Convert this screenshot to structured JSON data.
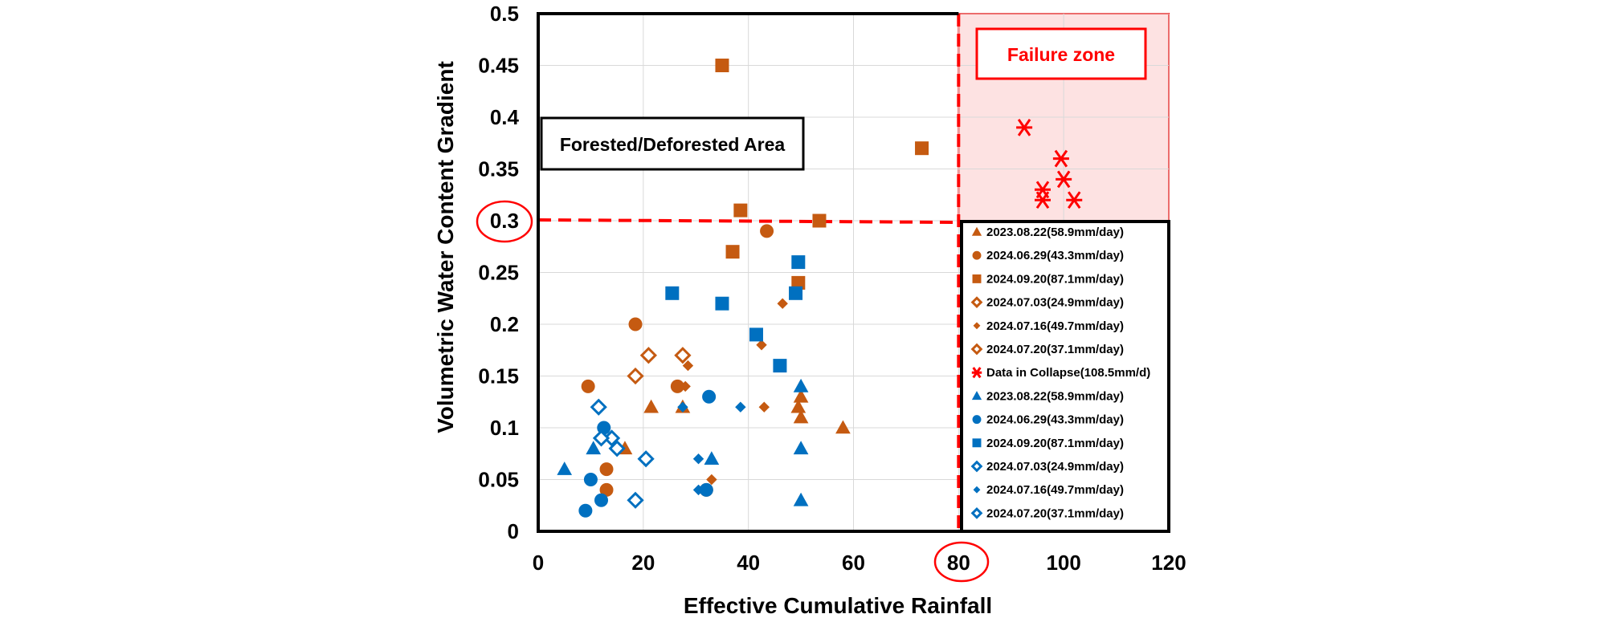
{
  "chart_data": {
    "type": "scatter",
    "xlabel": "Effective Cumulative Rainfall",
    "ylabel": "Volumetric Water Content Gradient",
    "xlim": [
      0,
      120
    ],
    "ylim": [
      0,
      0.5
    ],
    "xticks": [
      "0",
      "20",
      "40",
      "60",
      "80",
      "100",
      "120"
    ],
    "yticks": [
      "0",
      "0.05",
      "0.1",
      "0.15",
      "0.2",
      "0.25",
      "0.3",
      "0.35",
      "0.4",
      "0.45",
      "0.5"
    ],
    "grid": "on",
    "legend_placement": "right, below threshold line",
    "threshold": {
      "x": 80,
      "y": 0.3
    },
    "annotations": {
      "region_label": "Forested/Deforested Area",
      "failure_label": "Failure zone",
      "circled_x_tick": "80",
      "circled_y_tick": "0.3"
    },
    "colors": {
      "orange": "#C55A11",
      "blue": "#0070C0",
      "red": "#FF0000",
      "failure_fill": "#FDE2E2"
    },
    "series": [
      {
        "name": "2023.08.22(58.9mm/day)",
        "marker": "triangle",
        "color": "#C55A11",
        "filled": true,
        "points": [
          [
            16.5,
            0.08
          ],
          [
            21.5,
            0.12
          ],
          [
            27.5,
            0.12
          ],
          [
            49.5,
            0.12
          ],
          [
            50,
            0.13
          ],
          [
            50,
            0.11
          ],
          [
            58,
            0.1
          ]
        ]
      },
      {
        "name": "2024.06.29(43.3mm/day)",
        "marker": "circle",
        "color": "#C55A11",
        "filled": true,
        "points": [
          [
            9.5,
            0.14
          ],
          [
            13,
            0.06
          ],
          [
            13,
            0.04
          ],
          [
            18.5,
            0.2
          ],
          [
            26.5,
            0.14
          ],
          [
            32,
            0.04
          ],
          [
            43.5,
            0.29
          ]
        ]
      },
      {
        "name": "2024.09.20(87.1mm/day)",
        "marker": "square",
        "color": "#C55A11",
        "filled": true,
        "points": [
          [
            35,
            0.45
          ],
          [
            37,
            0.27
          ],
          [
            38.5,
            0.31
          ],
          [
            49.5,
            0.24
          ],
          [
            53.5,
            0.3
          ],
          [
            73,
            0.37
          ]
        ]
      },
      {
        "name": "2024.07.03(24.9mm/day)",
        "marker": "diamond",
        "color": "#C55A11",
        "filled": false,
        "points": [
          [
            18.5,
            0.15
          ],
          [
            21,
            0.17
          ]
        ]
      },
      {
        "name": "2024.07.16(49.7mm/day)",
        "marker": "diamond-small",
        "color": "#C55A11",
        "filled": true,
        "points": [
          [
            28,
            0.14
          ],
          [
            28.5,
            0.16
          ],
          [
            33,
            0.05
          ],
          [
            42.5,
            0.18
          ],
          [
            43,
            0.12
          ],
          [
            46.5,
            0.22
          ]
        ]
      },
      {
        "name": "2024.07.20(37.1mm/day)",
        "marker": "diamond",
        "color": "#C55A11",
        "filled": false,
        "points": [
          [
            27.5,
            0.17
          ]
        ]
      },
      {
        "name": "Data in Collapse(108.5mm/d)",
        "marker": "star",
        "color": "#FF0000",
        "filled": true,
        "points": [
          [
            92.5,
            0.39
          ],
          [
            99.5,
            0.36
          ],
          [
            100,
            0.34
          ],
          [
            96,
            0.33
          ],
          [
            96,
            0.32
          ],
          [
            102,
            0.32
          ]
        ]
      },
      {
        "name": "2023.08.22(58.9mm/day)",
        "marker": "triangle",
        "color": "#0070C0",
        "filled": true,
        "points": [
          [
            5,
            0.06
          ],
          [
            10.5,
            0.08
          ],
          [
            33,
            0.07
          ],
          [
            50,
            0.14
          ],
          [
            50,
            0.08
          ],
          [
            50,
            0.03
          ]
        ]
      },
      {
        "name": "2024.06.29(43.3mm/day)",
        "marker": "circle",
        "color": "#0070C0",
        "filled": true,
        "points": [
          [
            9,
            0.02
          ],
          [
            10,
            0.05
          ],
          [
            12,
            0.03
          ],
          [
            12.5,
            0.1
          ],
          [
            32,
            0.04
          ],
          [
            32.5,
            0.13
          ]
        ]
      },
      {
        "name": "2024.09.20(87.1mm/day)",
        "marker": "square",
        "color": "#0070C0",
        "filled": true,
        "points": [
          [
            25.5,
            0.23
          ],
          [
            35,
            0.22
          ],
          [
            41.5,
            0.19
          ],
          [
            46,
            0.16
          ],
          [
            49,
            0.23
          ],
          [
            49.5,
            0.26
          ]
        ]
      },
      {
        "name": "2024.07.03(24.9mm/day)",
        "marker": "diamond",
        "color": "#0070C0",
        "filled": false,
        "points": [
          [
            14,
            0.09
          ],
          [
            20.5,
            0.07
          ],
          [
            18.5,
            0.03
          ]
        ]
      },
      {
        "name": "2024.07.16(49.7mm/day)",
        "marker": "diamond-small",
        "color": "#0070C0",
        "filled": true,
        "points": [
          [
            27.5,
            0.12
          ],
          [
            30.5,
            0.07
          ],
          [
            30.5,
            0.04
          ],
          [
            38.5,
            0.12
          ]
        ]
      },
      {
        "name": "2024.07.20(37.1mm/day)",
        "marker": "diamond",
        "color": "#0070C0",
        "filled": false,
        "points": [
          [
            11.5,
            0.12
          ],
          [
            12,
            0.09
          ],
          [
            15,
            0.08
          ]
        ]
      }
    ]
  }
}
